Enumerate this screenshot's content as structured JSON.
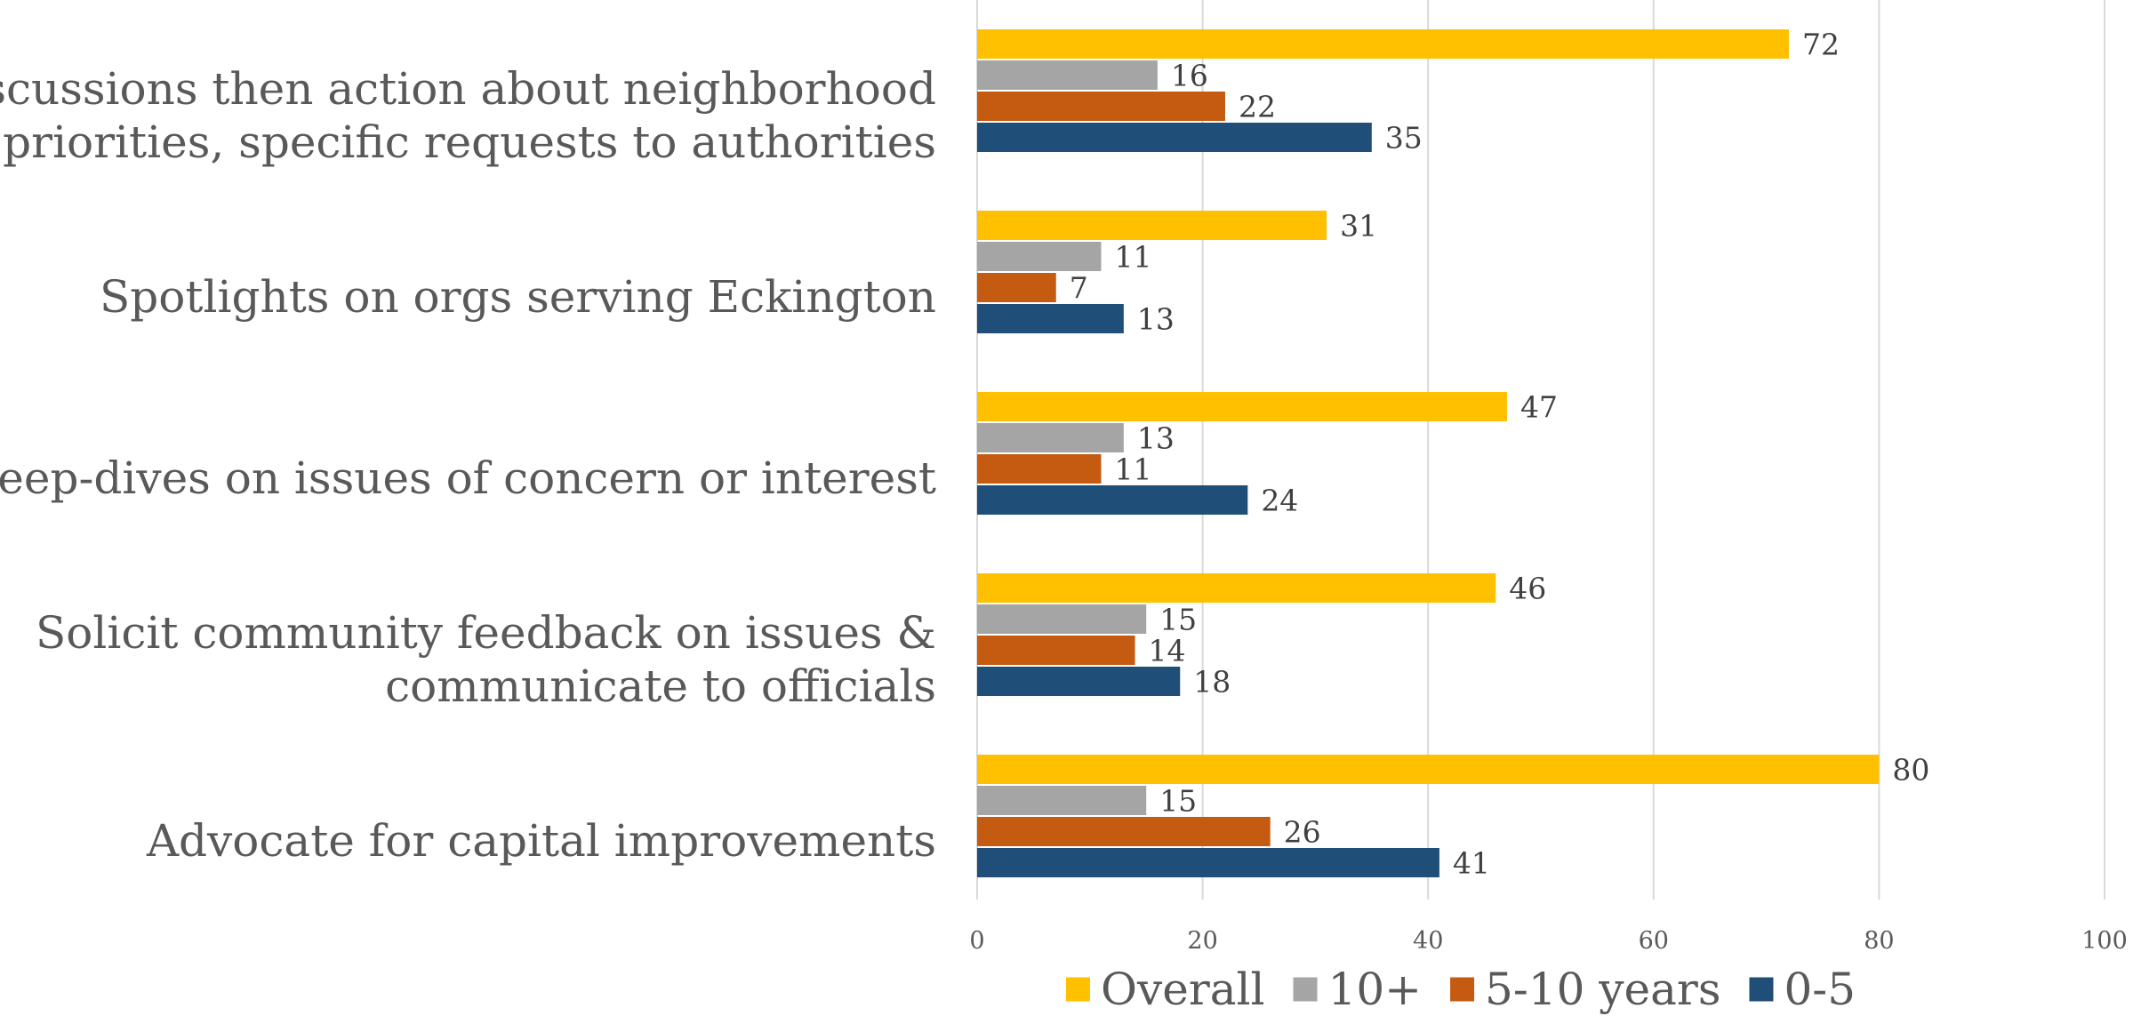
{
  "chart_data": {
    "type": "bar",
    "orientation": "horizontal",
    "categories": [
      "Discussions then action about neighborhood priorities, specific requests to authorities",
      "Spotlights on orgs serving Eckington",
      "Deep-dives on issues of concern or interest",
      "Solicit community feedback on issues & communicate to officials",
      "Advocate for capital improvements"
    ],
    "category_lines": [
      [
        "Discussions then action about neighborhood",
        "priorities, specific requests to authorities"
      ],
      [
        "Spotlights on orgs serving Eckington"
      ],
      [
        "Deep-dives on issues of concern or interest"
      ],
      [
        "Solicit community feedback on issues &",
        "communicate to officials"
      ],
      [
        "Advocate for capital improvements"
      ]
    ],
    "series": [
      {
        "name": "Overall",
        "color": "#ffc000",
        "values": [
          72,
          31,
          47,
          46,
          80
        ]
      },
      {
        "name": "10+",
        "color": "#a5a5a5",
        "values": [
          16,
          11,
          13,
          15,
          15
        ]
      },
      {
        "name": "5-10 years",
        "color": "#c55a11",
        "values": [
          22,
          7,
          11,
          14,
          26
        ]
      },
      {
        "name": "0-5",
        "color": "#1f4e79",
        "values": [
          35,
          13,
          24,
          18,
          41
        ]
      }
    ],
    "xlim": [
      0,
      100
    ],
    "xticks": [
      0,
      20,
      40,
      60,
      80,
      100
    ],
    "grid": true,
    "legend_position": "bottom",
    "title": "",
    "xlabel": "",
    "ylabel": ""
  }
}
